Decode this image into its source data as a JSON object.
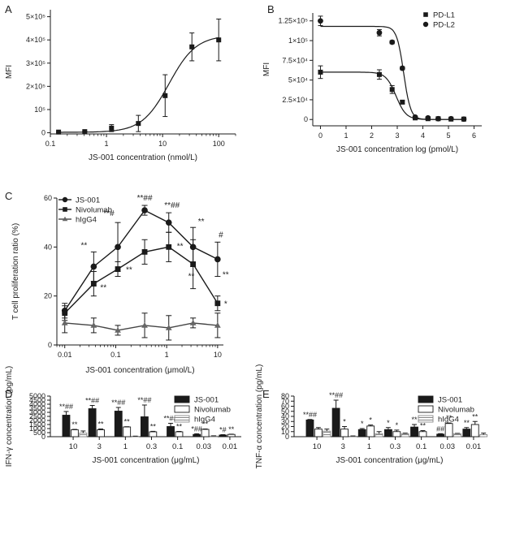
{
  "chart_data": [
    {
      "id": "A",
      "type": "scatter",
      "panel_letter": "A",
      "xscale": "log",
      "xlim": [
        0.1,
        200
      ],
      "ylim": [
        -5000,
        530000
      ],
      "xticks": [
        0.1,
        1,
        10,
        100
      ],
      "xtick_labels": [
        "0.1",
        "1",
        "10",
        "100"
      ],
      "yticks": [
        0,
        100000,
        200000,
        300000,
        400000,
        500000
      ],
      "ytick_labels": [
        "0",
        "10⁵",
        "2×10⁵",
        "3×10⁵",
        "4×10⁵",
        "5×10⁵"
      ],
      "xlabel": "JS-001 concentration (nmol/L)",
      "ylabel": "MFI",
      "series": [
        {
          "name": "JS-001",
          "marker": "square",
          "x": [
            0.14,
            0.41,
            1.23,
            3.7,
            11.1,
            33.3,
            100
          ],
          "y": [
            3000,
            5000,
            20000,
            40000,
            160000,
            370000,
            400000
          ],
          "err": [
            2000,
            2000,
            15000,
            35000,
            90000,
            60000,
            90000
          ],
          "fit": {
            "model": "sigmoid_log",
            "bottom": 2000,
            "top": 420000,
            "ec50": 13,
            "hill": 1.8
          }
        }
      ]
    },
    {
      "id": "B",
      "type": "scatter",
      "panel_letter": "B",
      "xscale": "linear",
      "xlim": [
        -0.3,
        6.3
      ],
      "ylim": [
        -8000,
        135000
      ],
      "xticks": [
        0,
        1,
        2,
        3,
        4,
        5,
        6
      ],
      "xtick_labels": [
        "0",
        "1",
        "2",
        "3",
        "4",
        "5",
        "6"
      ],
      "yticks": [
        0,
        25000,
        50000,
        75000,
        100000,
        125000
      ],
      "ytick_labels": [
        "0",
        "2.5×10⁴",
        "5×10⁴",
        "7.5×10⁴",
        "1×10⁵",
        "1.25×10⁵"
      ],
      "xlabel": "JS-001 concentration log (pmol/L)",
      "ylabel": "MFI",
      "legend_position": "top-right",
      "series": [
        {
          "name": "PD-L1",
          "marker": "square",
          "x": [
            0,
            2.3,
            2.8,
            3.2,
            3.7,
            4.2,
            4.6,
            5.1,
            5.6
          ],
          "y": [
            60000,
            57000,
            38000,
            22000,
            2000,
            1000,
            1000,
            500,
            500
          ],
          "err": [
            8000,
            6000,
            5000,
            2000,
            1000,
            1000,
            1000,
            500,
            500
          ],
          "fit": {
            "model": "sigmoid_linear",
            "bottom": 0,
            "top": 60000,
            "ec50": 2.95,
            "hill": 2.2
          }
        },
        {
          "name": "PD-L2",
          "marker": "circle",
          "x": [
            0,
            2.3,
            2.8,
            3.2,
            3.7,
            4.2,
            4.6,
            5.1,
            5.6
          ],
          "y": [
            125000,
            110000,
            98000,
            65000,
            3000,
            2000,
            1000,
            1000,
            500
          ],
          "err": [
            6000,
            4000,
            2000,
            2000,
            1000,
            1000,
            1000,
            500,
            500
          ],
          "fit": {
            "model": "sigmoid_linear",
            "bottom": 0,
            "top": 118000,
            "ec50": 3.25,
            "hill": 3.2
          }
        }
      ]
    },
    {
      "id": "C",
      "type": "line",
      "panel_letter": "C",
      "xscale": "log",
      "xlim": [
        0.007,
        13
      ],
      "ylim": [
        0,
        60
      ],
      "xticks": [
        0.01,
        0.1,
        1,
        10
      ],
      "xtick_labels": [
        "0.01",
        "0.1",
        "1",
        "10"
      ],
      "yticks": [
        0,
        20,
        40,
        60
      ],
      "ytick_labels": [
        "0",
        "20",
        "40",
        "60"
      ],
      "xlabel": "JS-001 concentration (μmol/L)",
      "ylabel": "T cell proliferation ratio (%)",
      "legend_position": "top-left",
      "x": [
        0.01,
        0.037,
        0.11,
        0.37,
        1.1,
        3.3,
        10
      ],
      "series": [
        {
          "name": "JS-001",
          "marker": "circle",
          "values": [
            14,
            32,
            40,
            55,
            50,
            40,
            35
          ],
          "err": [
            3,
            6,
            10,
            2,
            4,
            8,
            7
          ],
          "labels": [
            "",
            "**",
            "**#",
            "**##",
            "**##",
            "**",
            "#"
          ]
        },
        {
          "name": "Nivolumab",
          "marker": "square",
          "values": [
            13,
            25,
            31,
            38,
            40,
            33,
            17
          ],
          "err": [
            3,
            5,
            3,
            5,
            6,
            10,
            3
          ],
          "labels": [
            "",
            "**",
            "**",
            "",
            "**",
            "**",
            "*"
          ],
          "labels2": [
            "",
            "",
            "",
            "",
            "",
            "",
            "**"
          ]
        },
        {
          "name": "hIgG4",
          "marker": "triangle",
          "values": [
            9,
            8,
            6,
            8,
            7,
            9,
            8
          ],
          "err": [
            4,
            3,
            2,
            5,
            5,
            2,
            5
          ]
        }
      ]
    },
    {
      "id": "D",
      "type": "bar",
      "panel_letter": "D",
      "ylim": [
        0,
        5000
      ],
      "yticks": [
        0,
        500,
        1000,
        1500,
        2000,
        2500,
        3000,
        3500,
        4000,
        4500,
        5000
      ],
      "ytick_labels": [
        "0",
        "500",
        "1000",
        "1500",
        "2000",
        "2500",
        "3000",
        "3500",
        "4000",
        "4500",
        "5000"
      ],
      "xlabel": "JS-001 concentration (μg/mL)",
      "ylabel": "IFN-γ concentration (pg/mL)",
      "legend_position": "top-right",
      "categories": [
        "10",
        "3",
        "1",
        "0.3",
        "0.1",
        "0.03",
        "0.01"
      ],
      "series": [
        {
          "name": "JS-001",
          "style": "black",
          "values": [
            2650,
            3450,
            3150,
            2450,
            1250,
            280,
            200
          ],
          "err": [
            450,
            400,
            450,
            1450,
            400,
            80,
            50
          ],
          "labels": [
            "**##",
            "**##",
            "**##",
            "**##",
            "**##",
            "*##",
            "*#"
          ]
        },
        {
          "name": "Nivolumab",
          "style": "white",
          "values": [
            850,
            850,
            1200,
            600,
            600,
            900,
            280
          ],
          "err": [
            50,
            100,
            30,
            60,
            50,
            50,
            30
          ],
          "labels": [
            "**",
            "**",
            "**",
            "**",
            "**",
            "**",
            "**"
          ]
        },
        {
          "name": "hIgG4",
          "style": "hatch",
          "values": [
            450,
            0,
            50,
            0,
            0,
            80,
            0
          ],
          "err": [
            250,
            0,
            20,
            0,
            0,
            30,
            0
          ],
          "labels": [
            "",
            "",
            "",
            "",
            "",
            "",
            ""
          ]
        }
      ]
    },
    {
      "id": "E",
      "type": "bar",
      "panel_letter": "E",
      "ylim": [
        0,
        80
      ],
      "yticks": [
        0,
        10,
        20,
        30,
        40,
        50,
        60,
        70,
        80
      ],
      "ytick_labels": [
        "0",
        "10",
        "20",
        "30",
        "40",
        "50",
        "60",
        "70",
        "80"
      ],
      "xlabel": "JS-001 concentration (μg/mL)",
      "ylabel": "TNF-α concentration (pg/mL)",
      "legend_position": "top-right",
      "categories": [
        "10",
        "3",
        "1",
        "0.3",
        "0.1",
        "0.03",
        "0.01"
      ],
      "series": [
        {
          "name": "JS-001",
          "style": "black",
          "values": [
            33,
            56,
            14,
            14,
            19,
            5,
            15
          ],
          "err": [
            1,
            16,
            2,
            4,
            5,
            1,
            3
          ],
          "labels": [
            "**##",
            "**##",
            "*",
            "*",
            "**",
            "##",
            "**"
          ]
        },
        {
          "name": "Nivolumab",
          "style": "white",
          "values": [
            15,
            15,
            21,
            10,
            10,
            26,
            24
          ],
          "err": [
            3,
            5,
            2,
            3,
            2,
            1,
            6
          ],
          "labels": [
            "",
            "*",
            "*",
            "*",
            "**",
            "**",
            "**"
          ]
        },
        {
          "name": "hIgG4",
          "style": "hatch",
          "values": [
            11,
            1,
            6,
            6,
            0,
            6,
            4
          ],
          "err": [
            4,
            0.5,
            4,
            1,
            0,
            0.5,
            3
          ],
          "labels": [
            "",
            "",
            "",
            "",
            "",
            "",
            ""
          ]
        }
      ]
    }
  ]
}
